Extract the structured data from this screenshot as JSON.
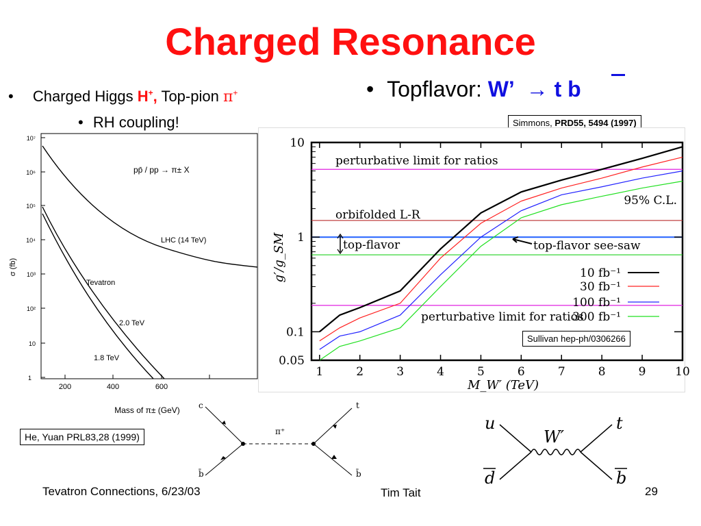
{
  "slide": {
    "title": "Charged Resonance",
    "left_bullet": {
      "marker": "•",
      "prefix": "Charged Higgs ",
      "higgs": "H",
      "higgs_sup": "+",
      "comma": ",",
      "mid": " Top-pion ",
      "pion": "π",
      "pion_sup": "+"
    },
    "sub_bullet": {
      "marker": "•",
      "text": "RH coupling!"
    },
    "right_bullet": {
      "marker": "•",
      "text": "Topflavor: ",
      "wprime": "W’",
      "arrow": "→",
      "tb": "t b"
    },
    "refs": {
      "simmons_prefix": "Simmons, ",
      "simmons_bold": "PRD55, 5494 (1997)",
      "sullivan": "Sullivan hep-ph/0306266",
      "he_yuan": "He, Yuan PRL83,28 (1999)"
    },
    "footer": {
      "left": "Tevatron Connections, 6/23/03",
      "center": "Tim Tait",
      "page": "29"
    }
  },
  "left_plot": {
    "y_tick_labels": [
      "10⁷",
      "10⁶",
      "10⁵",
      "10⁴",
      "10³",
      "10²",
      "10",
      "1"
    ],
    "x_tick_labels": [
      "200",
      "400",
      "600"
    ],
    "ylabel": "σ  (fb)",
    "xlabel": "Mass of π± (GeV)",
    "process": "pp̄ / pp → π± X",
    "lhc": "LHC (14 TeV)",
    "tevatron": "Tevatron",
    "tev20": "2.0 TeV",
    "tev18": "1.8 TeV"
  },
  "feynman_left": {
    "c": "c",
    "t": "t",
    "bbar_l": "b̄",
    "bbar_r": "b̄",
    "pi": "π⁺"
  },
  "feynman_right": {
    "u": "u",
    "t": "t",
    "dbar": "d",
    "bbar": "b",
    "w": "W′"
  },
  "chart_data": {
    "type": "line",
    "xlabel": "M_W′ (TeV)",
    "ylabel": "g′/g_SM",
    "log_y": true,
    "xlim": [
      0.8,
      10
    ],
    "ylim": [
      0.05,
      10
    ],
    "x_tick_labels": [
      "1",
      "2",
      "3",
      "4",
      "5",
      "6",
      "7",
      "8",
      "9",
      "10"
    ],
    "y_tick_labels": [
      {
        "v": 10,
        "label": "10"
      },
      {
        "v": 1,
        "label": "1"
      },
      {
        "v": 0.1,
        "label": "0.1"
      },
      {
        "v": 0.05,
        "label": "0.05"
      }
    ],
    "series": [
      {
        "name": "10 fb⁻¹",
        "color": "#000000",
        "x": [
          1,
          1.5,
          2,
          3,
          4,
          5,
          6,
          7,
          8,
          9,
          10
        ],
        "y": [
          0.1,
          0.15,
          0.18,
          0.27,
          0.75,
          1.8,
          3.0,
          4.0,
          5.2,
          6.8,
          9.0
        ]
      },
      {
        "name": "30 fb⁻¹",
        "color": "#ff2020",
        "x": [
          1,
          1.5,
          2,
          3,
          4,
          5,
          6,
          7,
          8,
          9,
          10
        ],
        "y": [
          0.08,
          0.11,
          0.14,
          0.2,
          0.6,
          1.4,
          2.4,
          3.3,
          4.2,
          5.5,
          7.0
        ]
      },
      {
        "name": "100 fb⁻¹",
        "color": "#2020ff",
        "x": [
          1,
          1.5,
          2,
          3,
          4,
          5,
          6,
          7,
          8,
          9,
          10
        ],
        "y": [
          0.065,
          0.09,
          0.1,
          0.15,
          0.4,
          1.0,
          1.9,
          2.8,
          3.4,
          4.2,
          5.0
        ]
      },
      {
        "name": "300 fb⁻¹",
        "color": "#20e020",
        "x": [
          1,
          1.5,
          2,
          3,
          4,
          5,
          6,
          7,
          8,
          9,
          10
        ],
        "y": [
          0.05,
          0.07,
          0.08,
          0.11,
          0.3,
          0.8,
          1.6,
          2.2,
          2.7,
          3.3,
          3.9
        ]
      }
    ],
    "hlines": [
      {
        "y": 5.2,
        "color": "#e020e0",
        "label": "perturbative limit for ratios"
      },
      {
        "y": 1.5,
        "color": "#c04040",
        "label": "orbifolded L-R"
      },
      {
        "y": 1.0,
        "color": "#2060ff",
        "label": "top-flavor see-saw"
      },
      {
        "y": 0.65,
        "color": "#20d020",
        "label": "top-flavor"
      },
      {
        "y": 0.19,
        "color": "#e020e0",
        "label": "perturbative limit for ratios"
      }
    ],
    "cl_label": "95% C.L."
  }
}
